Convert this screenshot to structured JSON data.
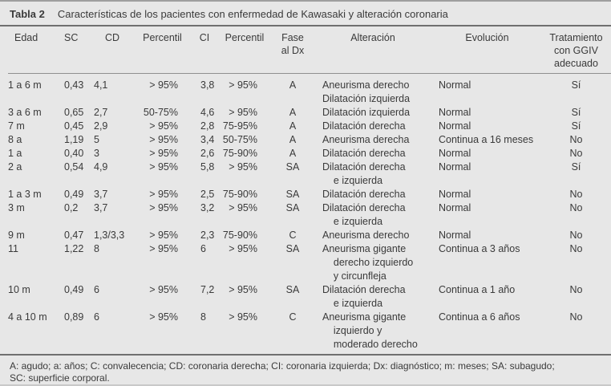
{
  "colors": {
    "background": "#e7e7e7",
    "text": "#3a3a3a",
    "rule_dark": "#6f6f6f",
    "rule_light": "#8f8f8f"
  },
  "table": {
    "label": "Tabla 2",
    "title": "Características de los pacientes con enfermedad de Kawasaki y alteración coronaria",
    "columns": [
      "Edad",
      "SC",
      "CD",
      "Percentil",
      "CI",
      "Percentil",
      "Fase\nal Dx",
      "Alteración",
      "Evolución",
      "Tratamiento\ncon GGIV\nadecuado"
    ],
    "rows": [
      {
        "edad": "1 a 6 m",
        "sc": "0,43",
        "cd": "4,1",
        "percentil_cd": "> 95%",
        "ci": "3,8",
        "percentil_ci": "> 95%",
        "fase": "A",
        "alteracion": "Aneurisma derecho\nDilatación izquierda",
        "evolucion": "Normal",
        "tratamiento": "Sí"
      },
      {
        "edad": "3 a 6 m",
        "sc": "0,65",
        "cd": "2,7",
        "percentil_cd": "50-75%",
        "ci": "4,6",
        "percentil_ci": "> 95%",
        "fase": "A",
        "alteracion": "Dilatación izquierda",
        "evolucion": "Normal",
        "tratamiento": "Sí"
      },
      {
        "edad": "7 m",
        "sc": "0,45",
        "cd": "2,9",
        "percentil_cd": "> 95%",
        "ci": "2,8",
        "percentil_ci": "75-95%",
        "fase": "A",
        "alteracion": "Dilatación derecha",
        "evolucion": "Normal",
        "tratamiento": "Sí"
      },
      {
        "edad": "8 a",
        "sc": "1,19",
        "cd": "5",
        "percentil_cd": "> 95%",
        "ci": "3,4",
        "percentil_ci": "50-75%",
        "fase": "A",
        "alteracion": "Aneurisma derecha",
        "evolucion": "Continua a 16 meses",
        "tratamiento": "No"
      },
      {
        "edad": "1 a",
        "sc": "0,40",
        "cd": "3",
        "percentil_cd": "> 95%",
        "ci": "2,6",
        "percentil_ci": "75-90%",
        "fase": "A",
        "alteracion": "Dilatación derecha",
        "evolucion": "Normal",
        "tratamiento": "No"
      },
      {
        "edad": "2 a",
        "sc": "0,54",
        "cd": "4,9",
        "percentil_cd": "> 95%",
        "ci": "5,8",
        "percentil_ci": "> 95%",
        "fase": "SA",
        "alteracion": "Dilatación derecha\n    e izquierda",
        "evolucion": "Normal",
        "tratamiento": "Sí"
      },
      {
        "edad": "1 a 3 m",
        "sc": "0,49",
        "cd": "3,7",
        "percentil_cd": "> 95%",
        "ci": "2,5",
        "percentil_ci": "75-90%",
        "fase": "SA",
        "alteracion": "Dilatación derecha",
        "evolucion": "Normal",
        "tratamiento": "No"
      },
      {
        "edad": "3 m",
        "sc": "0,2",
        "cd": "3,7",
        "percentil_cd": "> 95%",
        "ci": "3,2",
        "percentil_ci": "> 95%",
        "fase": "SA",
        "alteracion": "Dilatación derecha\n    e izquierda",
        "evolucion": "Normal",
        "tratamiento": "No"
      },
      {
        "edad": "9 m",
        "sc": "0,47",
        "cd": "1,3/3,3",
        "percentil_cd": "> 95%",
        "ci": "2,3",
        "percentil_ci": "75-90%",
        "fase": "C",
        "alteracion": "Aneurisma derecho",
        "evolucion": "Normal",
        "tratamiento": "No"
      },
      {
        "edad": "11",
        "sc": "1,22",
        "cd": "8",
        "percentil_cd": "> 95%",
        "ci": "6",
        "percentil_ci": "> 95%",
        "fase": "SA",
        "alteracion": "Aneurisma gigante\n    derecho izquierdo\n    y circunfleja",
        "evolucion": "Continua a 3 años",
        "tratamiento": "No"
      },
      {
        "edad": "10 m",
        "sc": "0,49",
        "cd": "6",
        "percentil_cd": "> 95%",
        "ci": "7,2",
        "percentil_ci": "> 95%",
        "fase": "SA",
        "alteracion": "Dilatación derecha\n    e izquierda",
        "evolucion": "Continua a 1 año",
        "tratamiento": "No"
      },
      {
        "edad": "4 a 10 m",
        "sc": "0,89",
        "cd": "6",
        "percentil_cd": "> 95%",
        "ci": "8",
        "percentil_ci": "> 95%",
        "fase": "C",
        "alteracion": "Aneurisma gigante\n    izquierdo y\n    moderado derecho",
        "evolucion": "Continua a 6 años",
        "tratamiento": "No"
      }
    ],
    "footnote_lines": [
      "A: agudo; a: años; C: convalecencia; CD: coronaria derecha; CI: coronaria izquierda; Dx: diagnóstico; m: meses; SA: subagudo;",
      "SC: superficie corporal."
    ]
  }
}
